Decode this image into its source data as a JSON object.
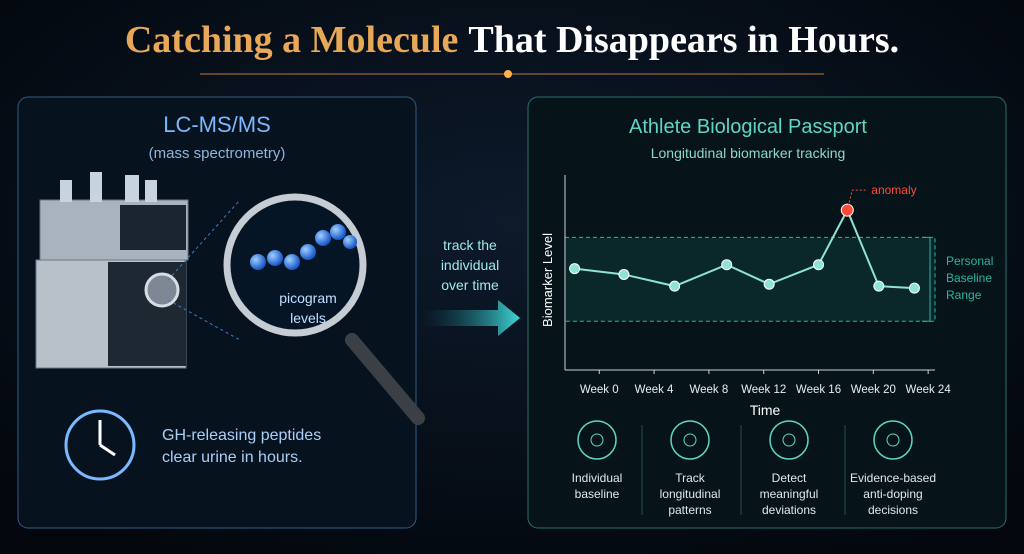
{
  "header": {
    "title_parts": [
      "Catching a Molecule",
      "That Disappears in Hours."
    ]
  },
  "left_panel": {
    "title": "LC-MS/MS",
    "subtitle": "(mass spectrometry)",
    "magnifier_label": [
      "picogram",
      "levels"
    ],
    "note": [
      "GH-releasing peptides",
      "clear urine in hours."
    ]
  },
  "arrow_label": [
    "track the",
    "individual",
    "over time"
  ],
  "right_panel": {
    "title": "Athlete Biological Passport",
    "subtitle": "Longitudinal biomarker tracking",
    "features": [
      {
        "label": [
          "Individual",
          "baseline"
        ]
      },
      {
        "label": [
          "Track",
          "longitudinal",
          "patterns"
        ]
      },
      {
        "label": [
          "Detect",
          "meaningful",
          "deviations"
        ]
      },
      {
        "label": [
          "Evidence-based",
          "anti-doping",
          "decisions"
        ]
      }
    ]
  },
  "chart_data": {
    "type": "line",
    "x_label": "Time",
    "y_label": "Biomarker Level",
    "xlim": [
      -2.5,
      24.5
    ],
    "ylim": [
      0,
      10
    ],
    "xticks": [
      {
        "value": 0,
        "label": "Week 0"
      },
      {
        "value": 4,
        "label": "Week 4"
      },
      {
        "value": 8,
        "label": "Week 8"
      },
      {
        "value": 12,
        "label": "Week 12"
      },
      {
        "value": 16,
        "label": "Week 16"
      },
      {
        "value": 20,
        "label": "Week 20"
      },
      {
        "value": 24,
        "label": "Week 24"
      }
    ],
    "x": [
      -1.8,
      1.8,
      5.5,
      9.3,
      12.4,
      16,
      18.1,
      20.4,
      23
    ],
    "series": [
      {
        "color": "#8fe3d6",
        "values": [
          5.2,
          4.9,
          4.3,
          5.4,
          4.4,
          5.4,
          8.2,
          4.3,
          4.2
        ]
      }
    ],
    "anomaly_index": 6,
    "anomaly_label": "anomaly",
    "anomaly_color": "#ff4a3a",
    "band": {
      "range": [
        2.5,
        6.8
      ],
      "label": [
        "Personal",
        "Baseline",
        "Range"
      ],
      "color": "#2bb3a0"
    }
  }
}
